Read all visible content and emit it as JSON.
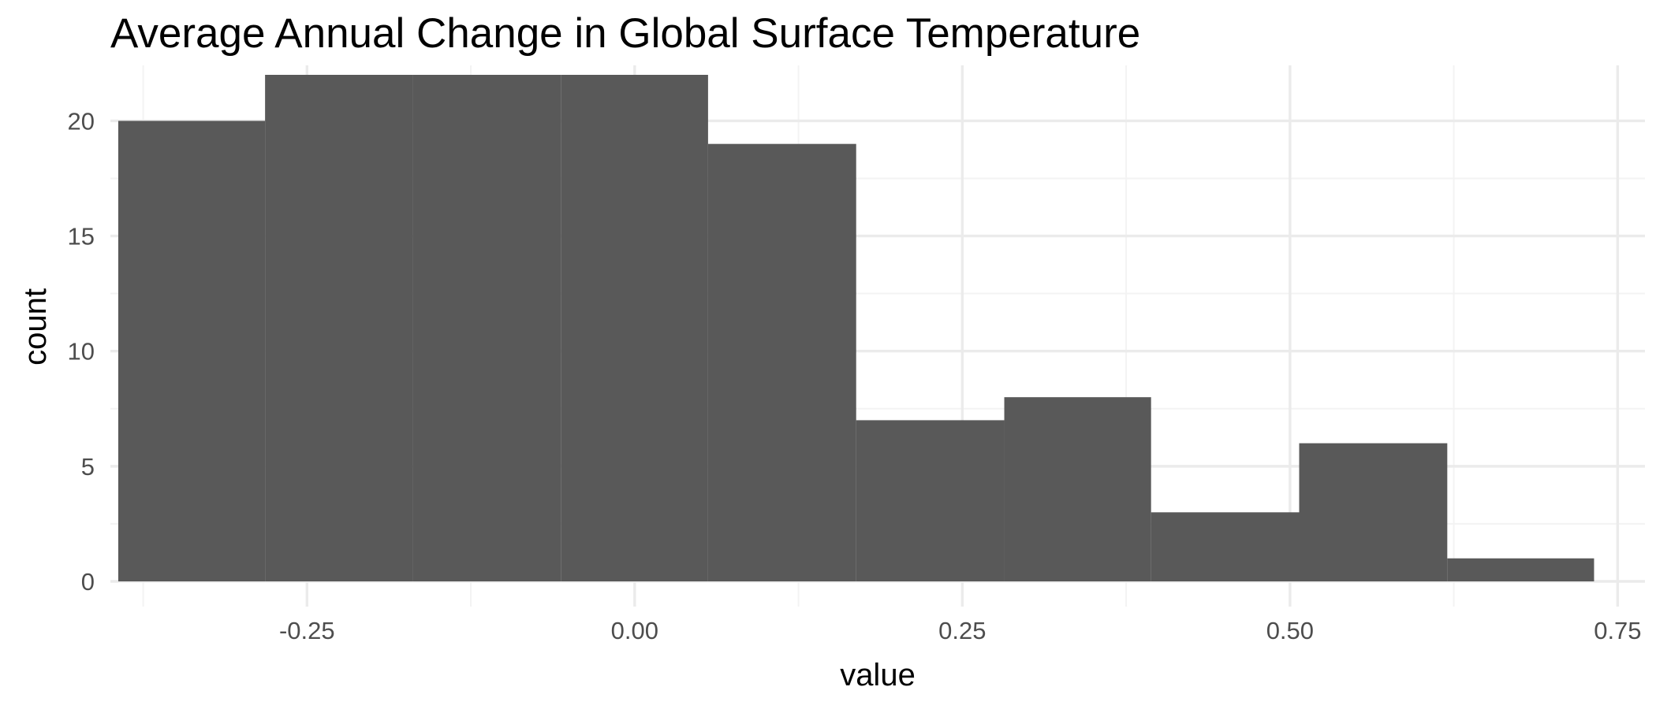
{
  "chart_data": {
    "type": "bar",
    "subtype": "histogram",
    "title": "Average Annual Change in Global Surface Temperature",
    "xlabel": "value",
    "ylabel": "count",
    "xlim": [
      -0.4,
      0.76
    ],
    "ylim": [
      0,
      22
    ],
    "x_ticks": [
      -0.25,
      0.0,
      0.25,
      0.5,
      0.75
    ],
    "x_tick_labels": [
      "-0.25",
      "0.00",
      "0.25",
      "0.50",
      "0.75"
    ],
    "y_ticks": [
      0,
      5,
      10,
      15,
      20
    ],
    "y_tick_labels": [
      "0",
      "5",
      "10",
      "15",
      "20"
    ],
    "grid": true,
    "bar_color": "#595959",
    "bins": [
      {
        "x0": -0.394,
        "x1": -0.282,
        "count": 20
      },
      {
        "x0": -0.282,
        "x1": -0.169,
        "count": 22
      },
      {
        "x0": -0.169,
        "x1": -0.056,
        "count": 22
      },
      {
        "x0": -0.056,
        "x1": 0.056,
        "count": 22
      },
      {
        "x0": 0.056,
        "x1": 0.169,
        "count": 19
      },
      {
        "x0": 0.169,
        "x1": 0.282,
        "count": 7
      },
      {
        "x0": 0.282,
        "x1": 0.394,
        "count": 8
      },
      {
        "x0": 0.394,
        "x1": 0.507,
        "count": 3
      },
      {
        "x0": 0.507,
        "x1": 0.62,
        "count": 6
      },
      {
        "x0": 0.62,
        "x1": 0.732,
        "count": 1
      }
    ]
  }
}
